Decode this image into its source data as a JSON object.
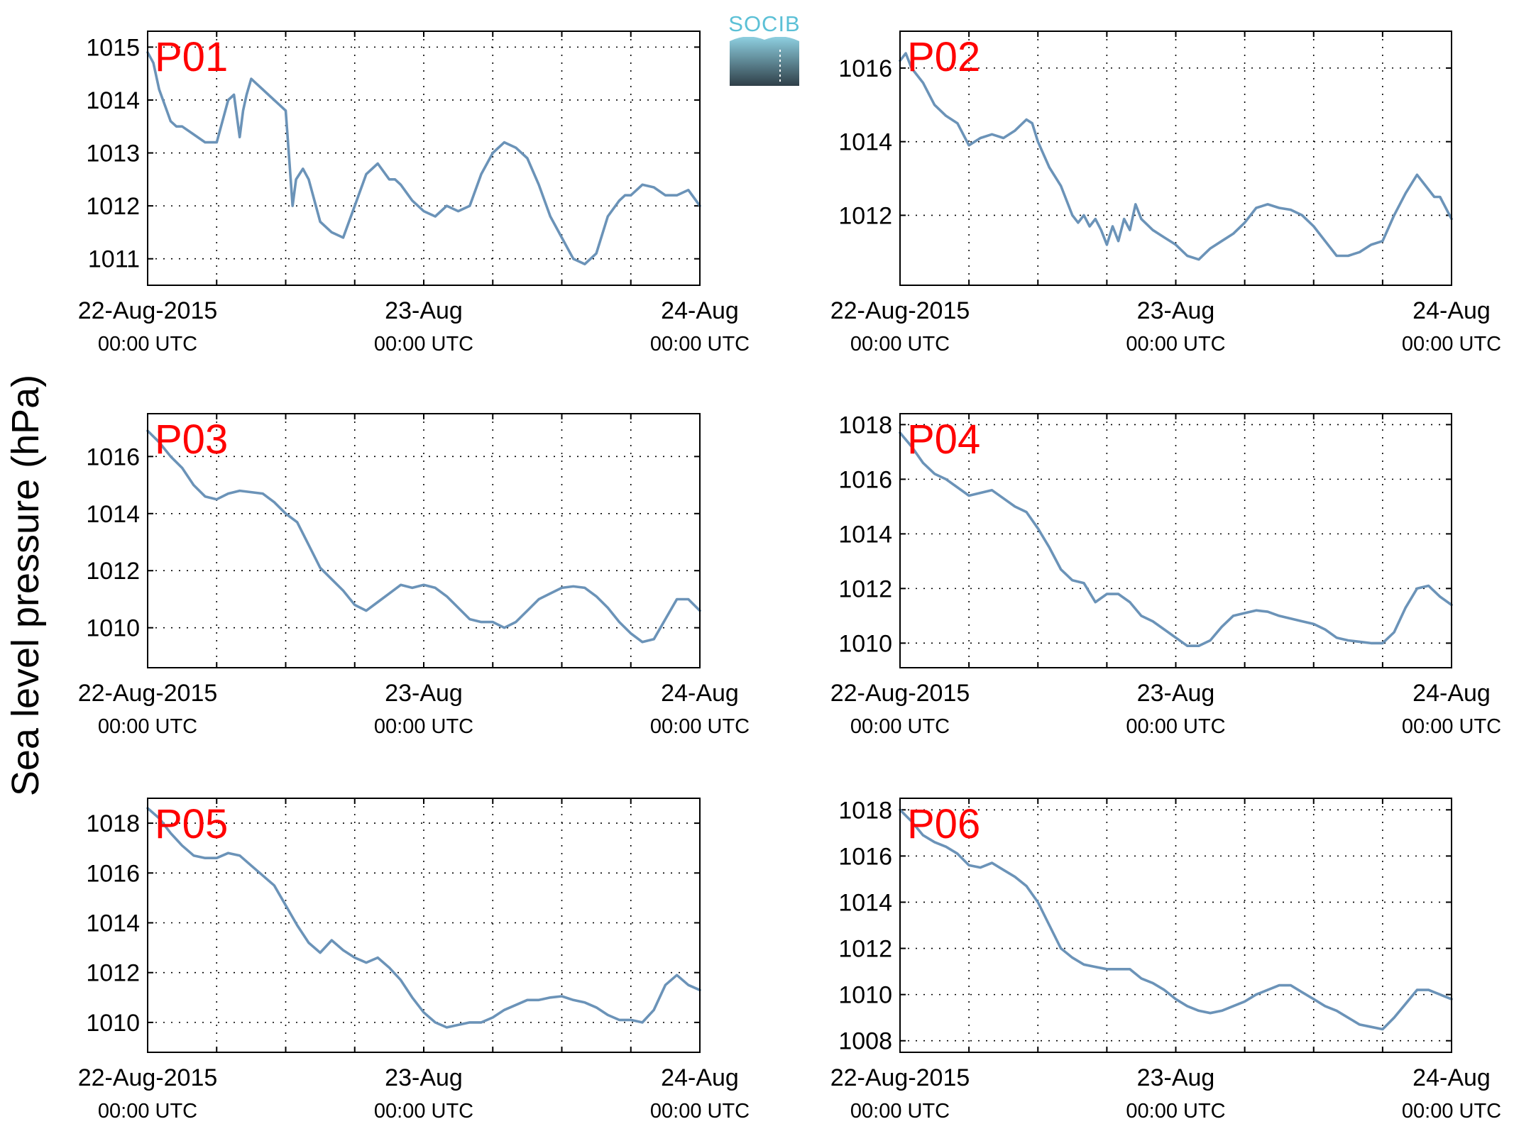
{
  "figure": {
    "ylabel": "Sea level pressure (hPa)",
    "line_color": "#6b93b8",
    "label_color": "#ff0000",
    "logo": {
      "text": "SOCIB",
      "text_color": "#5bc0d6",
      "top_color": "#8ecfe0",
      "bottom_color": "#2f3f48"
    }
  },
  "chart_data": [
    {
      "type": "line",
      "label": "P01",
      "xlim": [
        0,
        48
      ],
      "ylim": [
        1010.5,
        1015.3
      ],
      "yticks": [
        1011,
        1012,
        1013,
        1014,
        1015
      ],
      "xticks": [
        0,
        24,
        48
      ],
      "xtick_labels": [
        "22-Aug-2015",
        "23-Aug",
        "24-Aug"
      ],
      "xtick_sublabels": [
        "00:00 UTC",
        "00:00 UTC",
        "00:00 UTC"
      ],
      "xgrid": [
        0,
        6,
        12,
        18,
        24,
        30,
        36,
        42,
        48
      ],
      "grid": true,
      "x": [
        0,
        0.5,
        1,
        1.5,
        2,
        2.5,
        3,
        4,
        5,
        6,
        6.5,
        7,
        7.5,
        8,
        8.3,
        8.6,
        9,
        9.5,
        10,
        10.5,
        11,
        11.5,
        12,
        12.3,
        12.6,
        12.9,
        13.2,
        13.5,
        14,
        15,
        16,
        17,
        18,
        19,
        20,
        21,
        21.5,
        22,
        23,
        24,
        25,
        26,
        27,
        28,
        28.5,
        29,
        30,
        31,
        31.5,
        32,
        33,
        34,
        34.5,
        35,
        36,
        37,
        38,
        39,
        40,
        41,
        41.5,
        42,
        43,
        44,
        45,
        46,
        47,
        48
      ],
      "y": [
        1014.9,
        1014.7,
        1014.2,
        1013.9,
        1013.6,
        1013.5,
        1013.5,
        1013.35,
        1013.2,
        1013.2,
        1013.6,
        1014.0,
        1014.1,
        1013.3,
        1013.8,
        1014.1,
        1014.4,
        1014.3,
        1014.2,
        1014.1,
        1014.0,
        1013.9,
        1013.8,
        1012.9,
        1012.0,
        1012.5,
        1012.6,
        1012.7,
        1012.5,
        1011.7,
        1011.5,
        1011.4,
        1012.0,
        1012.6,
        1012.8,
        1012.5,
        1012.5,
        1012.4,
        1012.1,
        1011.9,
        1011.8,
        1012.0,
        1011.9,
        1012.0,
        1012.3,
        1012.6,
        1013.0,
        1013.2,
        1013.15,
        1013.1,
        1012.9,
        1012.4,
        1012.1,
        1011.8,
        1011.4,
        1011.0,
        1010.9,
        1011.1,
        1011.8,
        1012.1,
        1012.2,
        1012.2,
        1012.4,
        1012.35,
        1012.2,
        1012.2,
        1012.3,
        1012.0
      ]
    },
    {
      "type": "line",
      "label": "P02",
      "xlim": [
        0,
        48
      ],
      "ylim": [
        1010.1,
        1017.0
      ],
      "yticks": [
        1012,
        1014,
        1016
      ],
      "xticks": [
        0,
        24,
        48
      ],
      "xtick_labels": [
        "22-Aug-2015",
        "23-Aug",
        "24-Aug"
      ],
      "xtick_sublabels": [
        "00:00 UTC",
        "00:00 UTC",
        "00:00 UTC"
      ],
      "xgrid": [
        0,
        6,
        12,
        18,
        24,
        30,
        36,
        42,
        48
      ],
      "grid": true,
      "x": [
        0,
        0.5,
        1,
        2,
        3,
        4,
        5,
        6,
        7,
        8,
        9,
        10,
        11,
        11.5,
        12,
        13,
        14,
        15,
        15.5,
        16,
        16.5,
        17,
        17.5,
        18,
        18.5,
        19,
        19.5,
        20,
        20.5,
        21,
        22,
        23,
        24,
        25,
        26,
        27,
        28,
        29,
        30,
        31,
        32,
        33,
        34,
        35,
        36,
        37,
        38,
        39,
        40,
        41,
        42,
        43,
        44,
        45,
        46,
        46.5,
        47,
        48
      ],
      "y": [
        1016.2,
        1016.4,
        1016.0,
        1015.6,
        1015.0,
        1014.7,
        1014.5,
        1013.9,
        1014.1,
        1014.2,
        1014.1,
        1014.3,
        1014.6,
        1014.5,
        1014.0,
        1013.3,
        1012.8,
        1012.0,
        1011.8,
        1012.0,
        1011.7,
        1011.9,
        1011.6,
        1011.2,
        1011.7,
        1011.3,
        1011.9,
        1011.6,
        1012.3,
        1011.9,
        1011.6,
        1011.4,
        1011.2,
        1010.9,
        1010.8,
        1011.1,
        1011.3,
        1011.5,
        1011.8,
        1012.2,
        1012.3,
        1012.2,
        1012.15,
        1012.0,
        1011.7,
        1011.3,
        1010.9,
        1010.9,
        1011.0,
        1011.2,
        1011.3,
        1012.0,
        1012.6,
        1013.1,
        1012.7,
        1012.5,
        1012.5,
        1011.9
      ]
    },
    {
      "type": "line",
      "label": "P03",
      "xlim": [
        0,
        48
      ],
      "ylim": [
        1008.6,
        1017.5
      ],
      "yticks": [
        1010,
        1012,
        1014,
        1016
      ],
      "xticks": [
        0,
        24,
        48
      ],
      "xtick_labels": [
        "22-Aug-2015",
        "23-Aug",
        "24-Aug"
      ],
      "xtick_sublabels": [
        "00:00 UTC",
        "00:00 UTC",
        "00:00 UTC"
      ],
      "xgrid": [
        0,
        6,
        12,
        18,
        24,
        30,
        36,
        42,
        48
      ],
      "grid": true,
      "x": [
        0,
        1,
        2,
        3,
        4,
        5,
        6,
        7,
        8,
        9,
        10,
        11,
        12,
        13,
        14,
        15,
        16,
        17,
        18,
        19,
        20,
        21,
        22,
        23,
        24,
        25,
        26,
        27,
        28,
        29,
        30,
        31,
        32,
        33,
        34,
        35,
        36,
        37,
        38,
        39,
        40,
        41,
        42,
        43,
        44,
        45,
        46,
        47,
        48
      ],
      "y": [
        1016.9,
        1016.5,
        1016.0,
        1015.6,
        1015.0,
        1014.6,
        1014.5,
        1014.7,
        1014.8,
        1014.75,
        1014.7,
        1014.4,
        1014.0,
        1013.7,
        1012.9,
        1012.1,
        1011.7,
        1011.3,
        1010.8,
        1010.6,
        1010.9,
        1011.2,
        1011.5,
        1011.4,
        1011.5,
        1011.4,
        1011.1,
        1010.7,
        1010.3,
        1010.2,
        1010.2,
        1010.0,
        1010.2,
        1010.6,
        1011.0,
        1011.2,
        1011.4,
        1011.45,
        1011.4,
        1011.1,
        1010.7,
        1010.2,
        1009.8,
        1009.5,
        1009.6,
        1010.3,
        1011.0,
        1011.0,
        1010.6
      ]
    },
    {
      "type": "line",
      "label": "P04",
      "xlim": [
        0,
        48
      ],
      "ylim": [
        1009.1,
        1018.4
      ],
      "yticks": [
        1010,
        1012,
        1014,
        1016,
        1018
      ],
      "xticks": [
        0,
        24,
        48
      ],
      "xtick_labels": [
        "22-Aug-2015",
        "23-Aug",
        "24-Aug"
      ],
      "xtick_sublabels": [
        "00:00 UTC",
        "00:00 UTC",
        "00:00 UTC"
      ],
      "xgrid": [
        0,
        6,
        12,
        18,
        24,
        30,
        36,
        42,
        48
      ],
      "grid": true,
      "x": [
        0,
        1,
        2,
        3,
        4,
        5,
        6,
        7,
        8,
        9,
        10,
        11,
        12,
        13,
        14,
        15,
        16,
        17,
        18,
        19,
        20,
        21,
        22,
        23,
        24,
        25,
        26,
        27,
        28,
        29,
        30,
        31,
        32,
        33,
        34,
        35,
        36,
        37,
        38,
        39,
        40,
        41,
        42,
        43,
        44,
        45,
        46,
        47,
        48
      ],
      "y": [
        1017.7,
        1017.2,
        1016.6,
        1016.2,
        1016.0,
        1015.7,
        1015.4,
        1015.5,
        1015.6,
        1015.3,
        1015.0,
        1014.8,
        1014.2,
        1013.5,
        1012.7,
        1012.3,
        1012.2,
        1011.5,
        1011.8,
        1011.8,
        1011.5,
        1011.0,
        1010.8,
        1010.5,
        1010.2,
        1009.9,
        1009.9,
        1010.1,
        1010.6,
        1011.0,
        1011.1,
        1011.2,
        1011.15,
        1011.0,
        1010.9,
        1010.8,
        1010.7,
        1010.5,
        1010.2,
        1010.1,
        1010.05,
        1010.0,
        1010.0,
        1010.4,
        1011.3,
        1012.0,
        1012.1,
        1011.7,
        1011.4
      ]
    },
    {
      "type": "line",
      "label": "P05",
      "xlim": [
        0,
        48
      ],
      "ylim": [
        1008.8,
        1019.0
      ],
      "yticks": [
        1010,
        1012,
        1014,
        1016,
        1018
      ],
      "xticks": [
        0,
        24,
        48
      ],
      "xtick_labels": [
        "22-Aug-2015",
        "23-Aug",
        "24-Aug"
      ],
      "xtick_sublabels": [
        "00:00 UTC",
        "00:00 UTC",
        "00:00 UTC"
      ],
      "xgrid": [
        0,
        6,
        12,
        18,
        24,
        30,
        36,
        42,
        48
      ],
      "grid": true,
      "x": [
        0,
        1,
        2,
        3,
        4,
        5,
        6,
        7,
        8,
        9,
        10,
        11,
        12,
        13,
        14,
        15,
        16,
        17,
        18,
        19,
        20,
        21,
        22,
        23,
        24,
        25,
        26,
        27,
        28,
        29,
        30,
        31,
        32,
        33,
        34,
        35,
        36,
        37,
        38,
        39,
        40,
        41,
        42,
        43,
        44,
        45,
        46,
        47,
        48
      ],
      "y": [
        1018.6,
        1018.2,
        1017.6,
        1017.1,
        1016.7,
        1016.6,
        1016.6,
        1016.8,
        1016.7,
        1016.3,
        1015.9,
        1015.5,
        1014.7,
        1013.9,
        1013.2,
        1012.8,
        1013.3,
        1012.9,
        1012.6,
        1012.4,
        1012.6,
        1012.2,
        1011.7,
        1011.0,
        1010.4,
        1010.0,
        1009.8,
        1009.9,
        1010.0,
        1010.0,
        1010.2,
        1010.5,
        1010.7,
        1010.9,
        1010.9,
        1011.0,
        1011.05,
        1010.9,
        1010.8,
        1010.6,
        1010.3,
        1010.1,
        1010.1,
        1010.0,
        1010.5,
        1011.5,
        1011.9,
        1011.5,
        1011.3
      ]
    },
    {
      "type": "line",
      "label": "P06",
      "xlim": [
        0,
        48
      ],
      "ylim": [
        1007.5,
        1018.5
      ],
      "yticks": [
        1008,
        1010,
        1012,
        1014,
        1016,
        1018
      ],
      "xticks": [
        0,
        24,
        48
      ],
      "xtick_labels": [
        "22-Aug-2015",
        "23-Aug",
        "24-Aug"
      ],
      "xtick_sublabels": [
        "00:00 UTC",
        "00:00 UTC",
        "00:00 UTC"
      ],
      "xgrid": [
        0,
        6,
        12,
        18,
        24,
        30,
        36,
        42,
        48
      ],
      "grid": true,
      "x": [
        0,
        1,
        2,
        3,
        4,
        5,
        6,
        7,
        8,
        9,
        10,
        11,
        12,
        13,
        14,
        15,
        16,
        17,
        18,
        19,
        20,
        21,
        22,
        23,
        24,
        25,
        26,
        27,
        28,
        29,
        30,
        31,
        32,
        33,
        34,
        35,
        36,
        37,
        38,
        39,
        40,
        41,
        42,
        43,
        44,
        45,
        46,
        47,
        48
      ],
      "y": [
        1018.0,
        1017.5,
        1016.9,
        1016.6,
        1016.4,
        1016.1,
        1015.6,
        1015.5,
        1015.7,
        1015.4,
        1015.1,
        1014.7,
        1014.0,
        1013.0,
        1012.0,
        1011.6,
        1011.3,
        1011.2,
        1011.1,
        1011.1,
        1011.1,
        1010.7,
        1010.5,
        1010.2,
        1009.8,
        1009.5,
        1009.3,
        1009.2,
        1009.3,
        1009.5,
        1009.7,
        1010.0,
        1010.2,
        1010.4,
        1010.4,
        1010.1,
        1009.8,
        1009.5,
        1009.3,
        1009.0,
        1008.7,
        1008.6,
        1008.5,
        1009.0,
        1009.6,
        1010.2,
        1010.2,
        1010.0,
        1009.8
      ]
    }
  ]
}
